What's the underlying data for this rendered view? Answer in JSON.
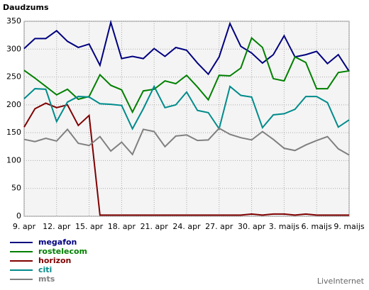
{
  "chart_data": {
    "type": "line",
    "title": "Daudzums",
    "brand": "LiveInternet",
    "categories": [
      "9. apr",
      null,
      null,
      "12. apr",
      null,
      null,
      "15. apr",
      null,
      null,
      "18. apr",
      null,
      null,
      "21. apr",
      null,
      null,
      "24. apr",
      null,
      null,
      "27. apr",
      null,
      null,
      "30. apr",
      null,
      null,
      "3. maijs",
      null,
      null,
      "6. maijs",
      null,
      null,
      "9. maijs"
    ],
    "series": [
      {
        "name": "megafon",
        "color": "#000080",
        "values": [
          301,
          319,
          319,
          333,
          314,
          303,
          309,
          271,
          348,
          283,
          287,
          283,
          301,
          287,
          303,
          298,
          275,
          255,
          286,
          346,
          305,
          293,
          275,
          290,
          324,
          286,
          290,
          296,
          274,
          290,
          260
        ]
      },
      {
        "name": "rostelecom",
        "color": "#008000",
        "values": [
          262,
          248,
          233,
          218,
          228,
          210,
          215,
          254,
          235,
          227,
          187,
          225,
          228,
          243,
          238,
          253,
          232,
          209,
          253,
          252,
          266,
          320,
          303,
          247,
          243,
          286,
          276,
          229,
          229,
          258,
          261
        ]
      },
      {
        "name": "horizon",
        "color": "#800000",
        "values": [
          160,
          193,
          203,
          195,
          200,
          163,
          181,
          2,
          2,
          2,
          2,
          2,
          2,
          2,
          2,
          2,
          2,
          2,
          2,
          2,
          2,
          4,
          2,
          4,
          4,
          2,
          4,
          2,
          2,
          2,
          2
        ]
      },
      {
        "name": "citi",
        "color": "#008b8b",
        "values": [
          211,
          229,
          228,
          170,
          205,
          215,
          214,
          202,
          201,
          199,
          157,
          193,
          233,
          195,
          200,
          223,
          190,
          186,
          157,
          233,
          217,
          214,
          159,
          182,
          184,
          192,
          215,
          215,
          204,
          160,
          173
        ]
      },
      {
        "name": "mts",
        "color": "#808080",
        "values": [
          138,
          134,
          140,
          135,
          156,
          131,
          127,
          143,
          117,
          133,
          111,
          156,
          152,
          125,
          144,
          146,
          136,
          137,
          158,
          147,
          141,
          137,
          152,
          138,
          122,
          118,
          128,
          136,
          143,
          121,
          110
        ]
      }
    ],
    "ylim": [
      0,
      350
    ],
    "yticks": [
      0,
      50,
      100,
      150,
      200,
      250,
      300,
      350
    ],
    "grid": true
  }
}
